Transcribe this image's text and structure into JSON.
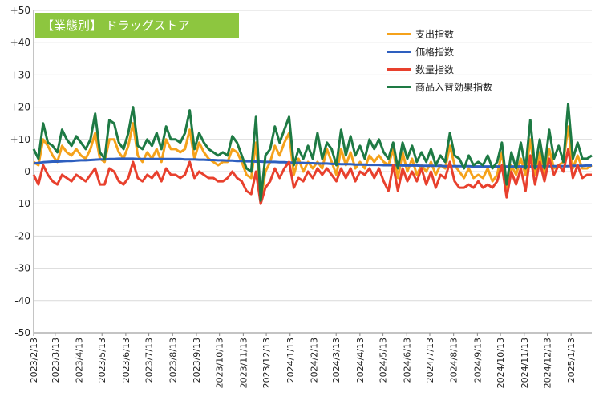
{
  "chart_data": {
    "type": "line",
    "title": "【業態別】 ドラッグストア",
    "ylim": [
      -50,
      50
    ],
    "y_ticks": [
      "+50",
      "+40",
      "+30",
      "+20",
      "+10",
      "0",
      "-10",
      "-20",
      "-30",
      "-40",
      "-50"
    ],
    "y_tick_values": [
      50,
      40,
      30,
      20,
      10,
      0,
      -10,
      -20,
      -30,
      -40,
      -50
    ],
    "x_range": [
      "2023-02-13",
      "2025-02-09"
    ],
    "x_tick_labels": [
      "2023/2/13",
      "2023/3/13",
      "2023/4/13",
      "2023/5/13",
      "2023/6/13",
      "2023/7/13",
      "2023/8/13",
      "2023/9/13",
      "2023/10/13",
      "2023/11/13",
      "2023/12/13",
      "2024/1/13",
      "2024/2/13",
      "2024/3/13",
      "2024/4/13",
      "2024/5/13",
      "2024/6/13",
      "2024/7/13",
      "2024/8/13",
      "2024/9/13",
      "2024/10/13",
      "2024/11/13",
      "2024/12/13",
      "2025/1/13"
    ],
    "x_tick_dates": [
      "2023-02-13",
      "2023-03-13",
      "2023-04-13",
      "2023-05-13",
      "2023-06-13",
      "2023-07-13",
      "2023-08-13",
      "2023-09-13",
      "2023-10-13",
      "2023-11-13",
      "2023-12-13",
      "2024-01-13",
      "2024-02-13",
      "2024-03-13",
      "2024-04-13",
      "2024-05-13",
      "2024-06-13",
      "2024-07-13",
      "2024-08-13",
      "2024-09-13",
      "2024-10-13",
      "2024-11-13",
      "2024-12-13",
      "2025-01-13"
    ],
    "grid": true,
    "legend_position": "top-right",
    "series": [
      {
        "name": "支出指数",
        "color": "#f5a21b",
        "values": [
          3,
          2,
          10,
          8,
          5,
          3,
          8,
          6,
          5,
          7,
          5,
          4,
          7,
          12,
          4,
          3,
          10,
          10,
          6,
          4,
          8,
          15,
          5,
          3,
          6,
          4,
          7,
          3,
          10,
          7,
          7,
          6,
          7,
          13,
          4,
          9,
          6,
          4,
          3,
          2,
          3,
          3,
          7,
          6,
          3,
          -1,
          -2,
          9,
          -9,
          0,
          3,
          8,
          5,
          9,
          12,
          -1,
          4,
          0,
          3,
          1,
          3,
          1,
          7,
          3,
          -1,
          7,
          2,
          6,
          1,
          3,
          1,
          5,
          3,
          5,
          3,
          2,
          7,
          -2,
          6,
          0,
          4,
          -1,
          2,
          0,
          3,
          -1,
          2,
          1,
          8,
          2,
          0,
          -2,
          1,
          -2,
          -1,
          -2,
          1,
          -3,
          -1,
          6,
          -5,
          2,
          -1,
          4,
          -1,
          10,
          -1,
          6,
          -1,
          7,
          1,
          2,
          3,
          14,
          1,
          5,
          1,
          1,
          2
        ]
      },
      {
        "name": "価格指数",
        "color": "#2e5fbf",
        "values": [
          2.5,
          2.7,
          2.9,
          3.0,
          3.1,
          3.1,
          3.2,
          3.3,
          3.3,
          3.4,
          3.5,
          3.5,
          3.6,
          3.7,
          3.8,
          3.8,
          3.9,
          3.9,
          4.0,
          4.0,
          4.0,
          4.0,
          3.9,
          3.9,
          3.9,
          3.9,
          3.9,
          3.9,
          3.9,
          3.9,
          3.9,
          3.9,
          3.8,
          3.8,
          3.8,
          3.7,
          3.7,
          3.6,
          3.6,
          3.5,
          3.5,
          3.4,
          3.4,
          3.3,
          3.3,
          3.2,
          3.2,
          3.1,
          3.1,
          3.0,
          3.0,
          3.0,
          2.9,
          2.9,
          2.8,
          2.8,
          2.7,
          2.7,
          2.6,
          2.6,
          2.5,
          2.5,
          2.5,
          2.4,
          2.4,
          2.3,
          2.3,
          2.3,
          2.2,
          2.2,
          2.2,
          2.1,
          2.1,
          2.1,
          2.0,
          2.0,
          2.0,
          2.0,
          1.9,
          1.9,
          1.9,
          1.9,
          1.8,
          1.8,
          1.8,
          1.8,
          1.8,
          1.7,
          1.7,
          1.7,
          1.7,
          1.7,
          1.7,
          1.6,
          1.6,
          1.6,
          1.6,
          1.6,
          1.6,
          1.6,
          1.6,
          1.6,
          1.6,
          1.6,
          1.6,
          1.6,
          1.6,
          1.6,
          1.7,
          1.7,
          1.7,
          1.7,
          1.7,
          1.7,
          1.8,
          1.8,
          1.8,
          1.9,
          1.9
        ]
      },
      {
        "name": "数量指数",
        "color": "#e8402d",
        "values": [
          -1,
          -4,
          2,
          -1,
          -3,
          -4,
          -1,
          -2,
          -3,
          -1,
          -2,
          -3,
          -1,
          1,
          -4,
          -4,
          1,
          0,
          -3,
          -4,
          -2,
          3,
          -2,
          -3,
          -1,
          -2,
          0,
          -3,
          1,
          -1,
          -1,
          -2,
          -1,
          3,
          -2,
          0,
          -1,
          -2,
          -2,
          -3,
          -3,
          -2,
          0,
          -2,
          -3,
          -6,
          -7,
          0,
          -10,
          -5,
          -3,
          1,
          -2,
          1,
          3,
          -5,
          -2,
          -3,
          0,
          -2,
          1,
          -1,
          1,
          -1,
          -3,
          1,
          -2,
          1,
          -3,
          0,
          -1,
          1,
          -2,
          1,
          -3,
          -6,
          2,
          -6,
          1,
          -3,
          0,
          -3,
          1,
          -4,
          0,
          -5,
          -1,
          -2,
          3,
          -3,
          -5,
          -5,
          -4,
          -5,
          -3,
          -5,
          -4,
          -5,
          -3,
          2,
          -8,
          0,
          -4,
          1,
          -6,
          5,
          -4,
          3,
          -3,
          4,
          -1,
          2,
          0,
          7,
          -2,
          2,
          -2,
          -1,
          -1
        ]
      },
      {
        "name": "商品入替効果指数",
        "color": "#1e7a44",
        "values": [
          7,
          4,
          15,
          9,
          8,
          6,
          13,
          10,
          8,
          11,
          9,
          7,
          10,
          18,
          6,
          4,
          16,
          15,
          9,
          7,
          12,
          20,
          8,
          7,
          10,
          8,
          12,
          7,
          14,
          10,
          10,
          9,
          12,
          19,
          7,
          12,
          9,
          7,
          6,
          5,
          6,
          5,
          11,
          9,
          5,
          1,
          0,
          17,
          -9,
          5,
          7,
          14,
          9,
          13,
          17,
          2,
          7,
          4,
          8,
          4,
          12,
          4,
          9,
          7,
          2,
          13,
          5,
          11,
          5,
          8,
          4,
          10,
          7,
          10,
          6,
          4,
          9,
          1,
          9,
          4,
          8,
          3,
          6,
          3,
          7,
          2,
          5,
          3,
          12,
          5,
          4,
          1,
          5,
          2,
          3,
          2,
          5,
          1,
          3,
          9,
          -4,
          6,
          1,
          9,
          1,
          16,
          1,
          10,
          1,
          13,
          4,
          8,
          3,
          21,
          4,
          9,
          4,
          4,
          5
        ]
      }
    ]
  }
}
